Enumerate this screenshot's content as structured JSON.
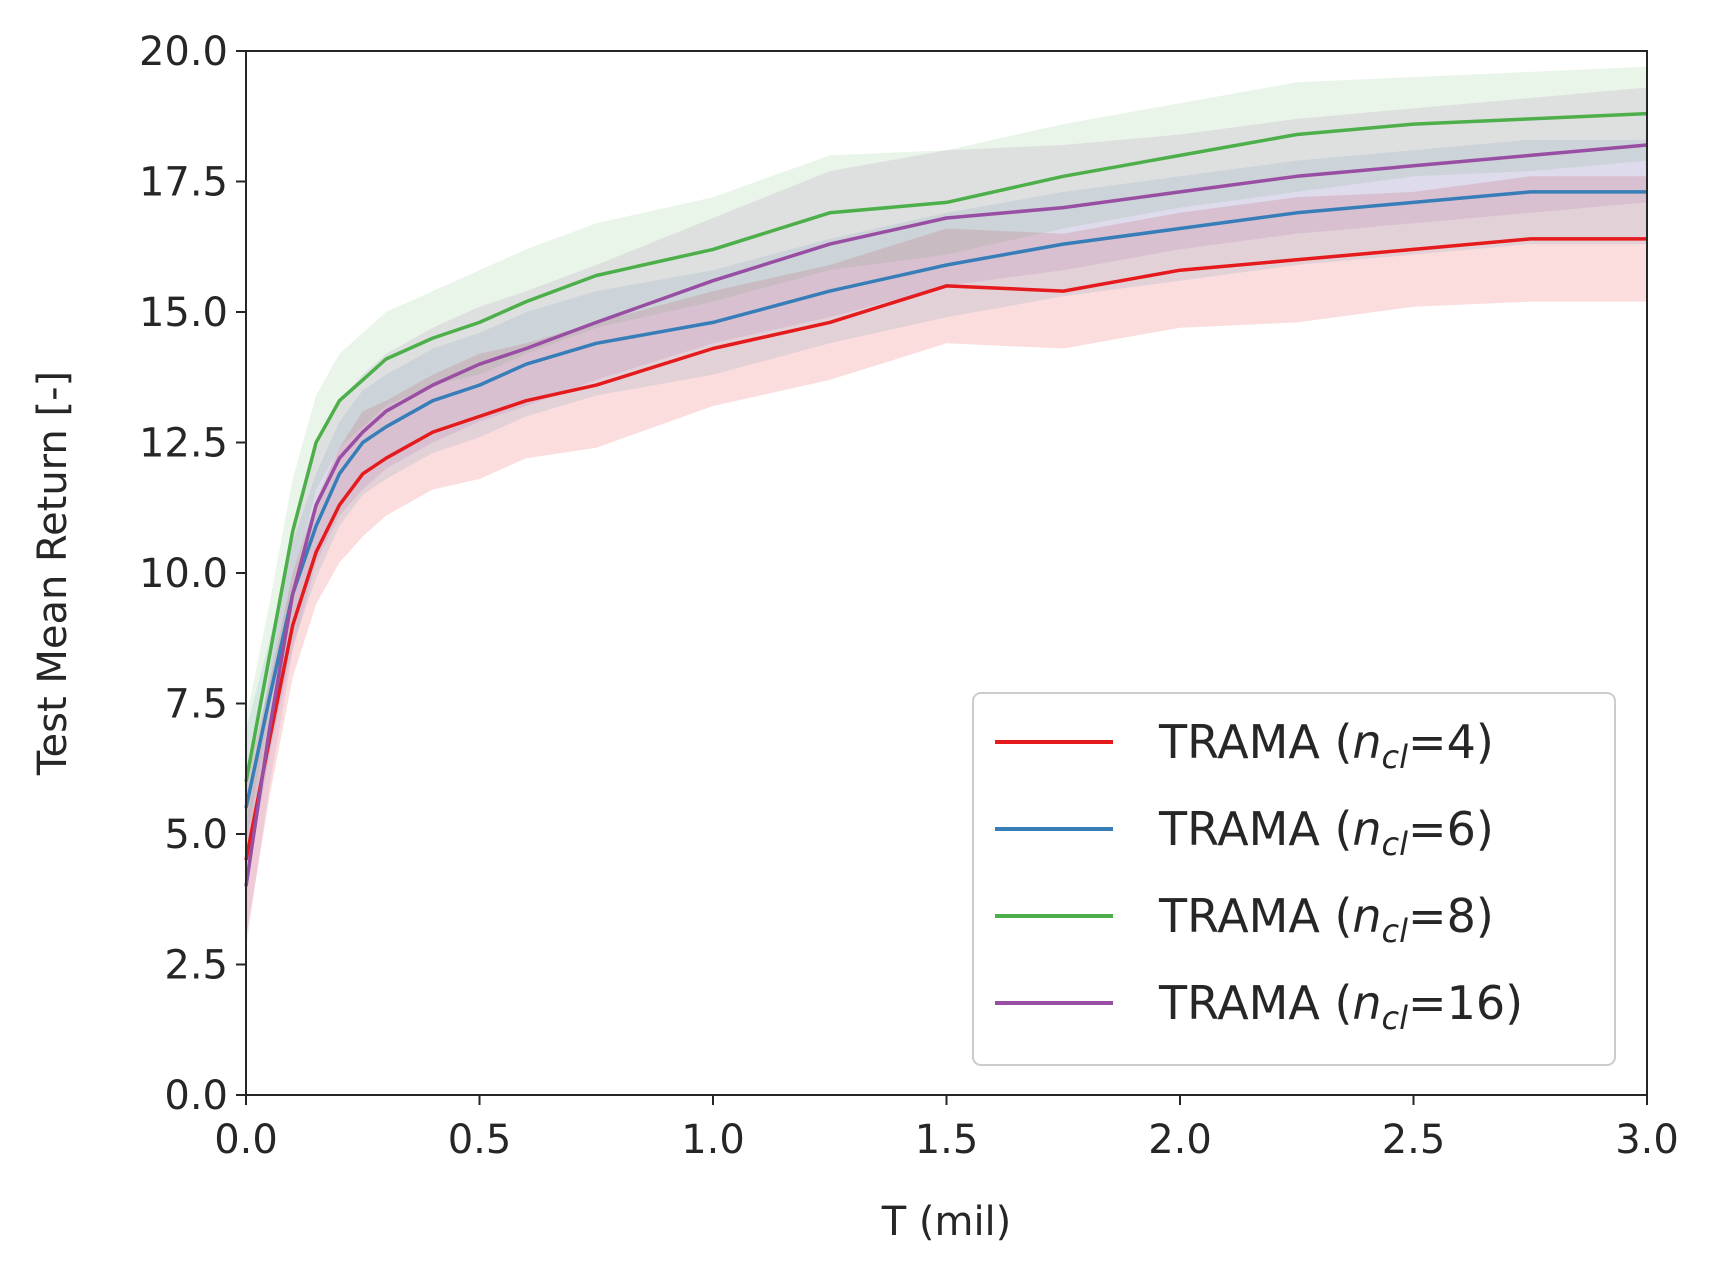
{
  "chart_data": {
    "type": "line",
    "title": "",
    "xlabel": "T (mil)",
    "ylabel": "Test Mean Return [-]",
    "xlim": [
      0.0,
      3.0
    ],
    "ylim": [
      0.0,
      20.0
    ],
    "xticks": [
      "0.0",
      "0.5",
      "1.0",
      "1.5",
      "2.0",
      "2.5",
      "3.0"
    ],
    "yticks": [
      "0.0",
      "2.5",
      "5.0",
      "7.5",
      "10.0",
      "12.5",
      "15.0",
      "17.5",
      "20.0"
    ],
    "grid": false,
    "legend_position": "bottom-right",
    "x": [
      0.0,
      0.05,
      0.1,
      0.15,
      0.2,
      0.25,
      0.3,
      0.4,
      0.5,
      0.6,
      0.75,
      1.0,
      1.25,
      1.5,
      1.75,
      2.0,
      2.25,
      2.5,
      2.75,
      3.0
    ],
    "series": [
      {
        "name": "TRAMA (n_cl=4)",
        "legend_prefix": "TRAMA (",
        "legend_var": "n",
        "legend_sub": "cl",
        "legend_suffix": "=4)",
        "color": "#e41a1c",
        "band_alpha": 0.15,
        "values": [
          4.5,
          6.8,
          9.0,
          10.4,
          11.3,
          11.9,
          12.2,
          12.7,
          13.0,
          13.3,
          13.6,
          14.3,
          14.8,
          15.5,
          15.4,
          15.8,
          16.0,
          16.2,
          16.4,
          16.4
        ],
        "lower": [
          3.0,
          5.7,
          8.0,
          9.4,
          10.2,
          10.7,
          11.1,
          11.6,
          11.8,
          12.2,
          12.4,
          13.2,
          13.7,
          14.4,
          14.3,
          14.7,
          14.8,
          15.1,
          15.2,
          15.2
        ],
        "upper": [
          6.0,
          7.9,
          10.0,
          11.4,
          12.4,
          13.1,
          13.3,
          13.8,
          14.2,
          14.4,
          14.8,
          15.4,
          15.9,
          16.6,
          16.5,
          16.9,
          17.2,
          17.3,
          17.6,
          17.6
        ]
      },
      {
        "name": "TRAMA (n_cl=6)",
        "legend_prefix": "TRAMA (",
        "legend_var": "n",
        "legend_sub": "cl",
        "legend_suffix": "=6)",
        "color": "#377eb8",
        "band_alpha": 0.12,
        "values": [
          5.5,
          7.6,
          9.6,
          10.9,
          11.9,
          12.5,
          12.8,
          13.3,
          13.6,
          14.0,
          14.4,
          14.8,
          15.4,
          15.9,
          16.3,
          16.6,
          16.9,
          17.1,
          17.3,
          17.3
        ],
        "lower": [
          4.0,
          6.5,
          8.6,
          9.9,
          10.9,
          11.5,
          11.8,
          12.3,
          12.6,
          13.0,
          13.4,
          13.8,
          14.4,
          14.9,
          15.3,
          15.6,
          15.9,
          16.1,
          16.3,
          16.3
        ],
        "upper": [
          7.0,
          8.7,
          10.6,
          11.9,
          12.9,
          13.5,
          13.8,
          14.3,
          14.6,
          15.0,
          15.4,
          15.8,
          16.4,
          16.9,
          17.3,
          17.6,
          17.9,
          18.1,
          18.3,
          18.3
        ]
      },
      {
        "name": "TRAMA (n_cl=8)",
        "legend_prefix": "TRAMA (",
        "legend_var": "n",
        "legend_sub": "cl",
        "legend_suffix": "=8)",
        "color": "#4daf4a",
        "band_alpha": 0.12,
        "values": [
          6.0,
          8.4,
          10.8,
          12.5,
          13.3,
          13.7,
          14.1,
          14.5,
          14.8,
          15.2,
          15.7,
          16.2,
          16.9,
          17.1,
          17.6,
          18.0,
          18.4,
          18.6,
          18.7,
          18.8
        ],
        "lower": [
          4.8,
          7.4,
          9.8,
          11.6,
          12.4,
          12.8,
          13.2,
          13.6,
          13.8,
          14.2,
          14.7,
          15.2,
          15.8,
          16.1,
          16.6,
          17.0,
          17.3,
          17.6,
          17.7,
          17.9
        ],
        "upper": [
          7.2,
          9.4,
          11.8,
          13.4,
          14.2,
          14.6,
          15.0,
          15.4,
          15.8,
          16.2,
          16.7,
          17.2,
          18.0,
          18.1,
          18.6,
          19.0,
          19.4,
          19.5,
          19.6,
          19.7
        ]
      },
      {
        "name": "TRAMA (n_cl=16)",
        "legend_prefix": "TRAMA (",
        "legend_var": "n",
        "legend_sub": "cl",
        "legend_suffix": "=16)",
        "color": "#984ea3",
        "band_alpha": 0.12,
        "values": [
          4.0,
          7.0,
          9.6,
          11.3,
          12.2,
          12.7,
          13.1,
          13.6,
          14.0,
          14.3,
          14.8,
          15.6,
          16.3,
          16.8,
          17.0,
          17.3,
          17.6,
          17.8,
          18.0,
          18.2
        ],
        "lower": [
          2.8,
          5.9,
          8.5,
          10.2,
          11.1,
          11.6,
          12.0,
          12.5,
          12.9,
          13.2,
          13.7,
          14.4,
          14.9,
          15.5,
          15.8,
          16.2,
          16.5,
          16.7,
          16.9,
          17.1
        ],
        "upper": [
          5.2,
          8.1,
          10.7,
          12.4,
          13.3,
          13.8,
          14.2,
          14.7,
          15.1,
          15.4,
          15.9,
          16.8,
          17.7,
          18.1,
          18.2,
          18.4,
          18.7,
          18.9,
          19.1,
          19.3
        ]
      }
    ]
  }
}
